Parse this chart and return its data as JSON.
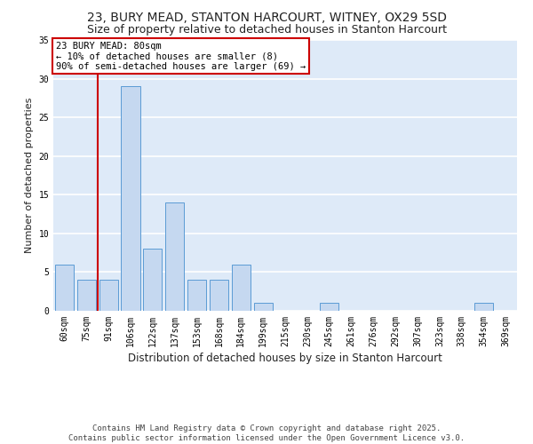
{
  "title1": "23, BURY MEAD, STANTON HARCOURT, WITNEY, OX29 5SD",
  "title2": "Size of property relative to detached houses in Stanton Harcourt",
  "xlabel": "Distribution of detached houses by size in Stanton Harcourt",
  "ylabel": "Number of detached properties",
  "categories": [
    "60sqm",
    "75sqm",
    "91sqm",
    "106sqm",
    "122sqm",
    "137sqm",
    "153sqm",
    "168sqm",
    "184sqm",
    "199sqm",
    "215sqm",
    "230sqm",
    "245sqm",
    "261sqm",
    "276sqm",
    "292sqm",
    "307sqm",
    "323sqm",
    "338sqm",
    "354sqm",
    "369sqm"
  ],
  "values": [
    6,
    4,
    4,
    29,
    8,
    14,
    4,
    4,
    6,
    1,
    0,
    0,
    1,
    0,
    0,
    0,
    0,
    0,
    0,
    1,
    0
  ],
  "bar_color": "#c5d8f0",
  "bar_edge_color": "#5b9bd5",
  "background_color": "#deeaf8",
  "grid_color": "#ffffff",
  "vline_x": 1.5,
  "vline_color": "#cc0000",
  "annotation_text": "23 BURY MEAD: 80sqm\n← 10% of detached houses are smaller (8)\n90% of semi-detached houses are larger (69) →",
  "annotation_box_color": "#cc0000",
  "footer_text": "Contains HM Land Registry data © Crown copyright and database right 2025.\nContains public sector information licensed under the Open Government Licence v3.0.",
  "ylim": [
    0,
    35
  ],
  "yticks": [
    0,
    5,
    10,
    15,
    20,
    25,
    30,
    35
  ],
  "title1_fontsize": 10,
  "title2_fontsize": 9,
  "xlabel_fontsize": 8.5,
  "ylabel_fontsize": 8,
  "tick_fontsize": 7,
  "footer_fontsize": 6.5,
  "annot_fontsize": 7.5
}
